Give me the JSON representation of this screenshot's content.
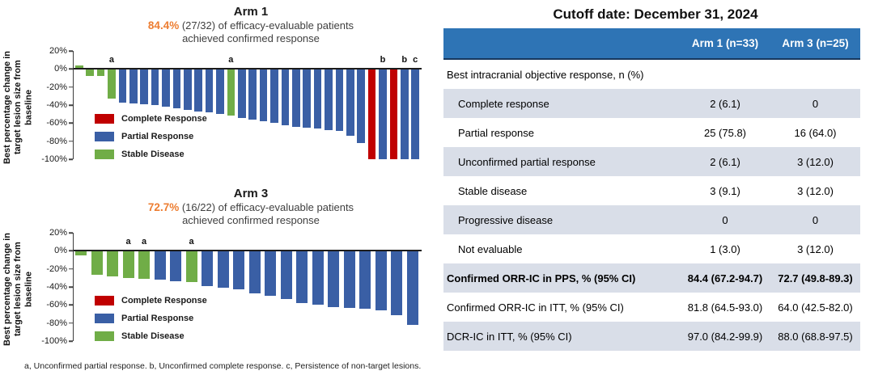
{
  "colors": {
    "cr": "#C00000",
    "pr": "#3A5FA5",
    "sd": "#70AD47",
    "accent_orange": "#ED7D31",
    "table_header_blue": "#2E74B5",
    "row_shade": "#D9DEE8",
    "zero_line": "#1C1C1C"
  },
  "legend": [
    {
      "key": "cr",
      "label": "Complete Response"
    },
    {
      "key": "pr",
      "label": "Partial Response"
    },
    {
      "key": "sd",
      "label": "Stable Disease"
    }
  ],
  "footnote": "a, Unconfirmed partial response. b, Unconfirmed complete response. c, Persistence of non-target lesions.",
  "chart_data": [
    {
      "type": "bar",
      "subtype": "waterfall",
      "title": "Arm 1",
      "highlight": "84.4%",
      "subtitle": "(27/32) of efficacy-evaluable patients",
      "subtitle2": "achieved confirmed response",
      "ylabel": "Best percentage change in target lesion size from baseline",
      "ylim": [
        -100,
        20
      ],
      "yticks": [
        "20%",
        "0%",
        "-20%",
        "-40%",
        "-60%",
        "-80%",
        "-100%"
      ],
      "grid": false,
      "legend_position": "inside-left",
      "values": [
        {
          "v": 4,
          "cat": "sd",
          "note": ""
        },
        {
          "v": -8,
          "cat": "sd",
          "note": ""
        },
        {
          "v": -8,
          "cat": "sd",
          "note": ""
        },
        {
          "v": -33,
          "cat": "sd",
          "note": "a"
        },
        {
          "v": -37,
          "cat": "pr",
          "note": ""
        },
        {
          "v": -38,
          "cat": "pr",
          "note": ""
        },
        {
          "v": -39,
          "cat": "pr",
          "note": ""
        },
        {
          "v": -40,
          "cat": "pr",
          "note": ""
        },
        {
          "v": -42,
          "cat": "pr",
          "note": ""
        },
        {
          "v": -44,
          "cat": "pr",
          "note": ""
        },
        {
          "v": -45,
          "cat": "pr",
          "note": ""
        },
        {
          "v": -47,
          "cat": "pr",
          "note": ""
        },
        {
          "v": -48,
          "cat": "pr",
          "note": ""
        },
        {
          "v": -50,
          "cat": "pr",
          "note": ""
        },
        {
          "v": -52,
          "cat": "sd",
          "note": "a"
        },
        {
          "v": -54,
          "cat": "pr",
          "note": ""
        },
        {
          "v": -56,
          "cat": "pr",
          "note": ""
        },
        {
          "v": -58,
          "cat": "pr",
          "note": ""
        },
        {
          "v": -60,
          "cat": "pr",
          "note": ""
        },
        {
          "v": -62,
          "cat": "pr",
          "note": ""
        },
        {
          "v": -64,
          "cat": "pr",
          "note": ""
        },
        {
          "v": -65,
          "cat": "pr",
          "note": ""
        },
        {
          "v": -66,
          "cat": "pr",
          "note": ""
        },
        {
          "v": -68,
          "cat": "pr",
          "note": ""
        },
        {
          "v": -69,
          "cat": "pr",
          "note": ""
        },
        {
          "v": -74,
          "cat": "pr",
          "note": ""
        },
        {
          "v": -82,
          "cat": "pr",
          "note": ""
        },
        {
          "v": -100,
          "cat": "cr",
          "note": ""
        },
        {
          "v": -100,
          "cat": "pr",
          "note": "b"
        },
        {
          "v": -100,
          "cat": "cr",
          "note": ""
        },
        {
          "v": -100,
          "cat": "pr",
          "note": "b"
        },
        {
          "v": -100,
          "cat": "pr",
          "note": "c"
        }
      ]
    },
    {
      "type": "bar",
      "subtype": "waterfall",
      "title": "Arm 3",
      "highlight": "72.7%",
      "subtitle": "(16/22) of efficacy-evaluable patients",
      "subtitle2": "achieved confirmed response",
      "ylabel": "Best percentage change in target lesion size from baseline",
      "ylim": [
        -100,
        20
      ],
      "yticks": [
        "20%",
        "0%",
        "-20%",
        "-40%",
        "-60%",
        "-80%",
        "-100%"
      ],
      "grid": false,
      "legend_position": "inside-left",
      "values": [
        {
          "v": -5,
          "cat": "sd",
          "note": ""
        },
        {
          "v": -27,
          "cat": "sd",
          "note": ""
        },
        {
          "v": -28,
          "cat": "sd",
          "note": ""
        },
        {
          "v": -30,
          "cat": "sd",
          "note": "a"
        },
        {
          "v": -31,
          "cat": "sd",
          "note": "a"
        },
        {
          "v": -32,
          "cat": "pr",
          "note": ""
        },
        {
          "v": -34,
          "cat": "pr",
          "note": ""
        },
        {
          "v": -35,
          "cat": "sd",
          "note": "a"
        },
        {
          "v": -39,
          "cat": "pr",
          "note": ""
        },
        {
          "v": -41,
          "cat": "pr",
          "note": ""
        },
        {
          "v": -43,
          "cat": "pr",
          "note": ""
        },
        {
          "v": -47,
          "cat": "pr",
          "note": ""
        },
        {
          "v": -50,
          "cat": "pr",
          "note": ""
        },
        {
          "v": -53,
          "cat": "pr",
          "note": ""
        },
        {
          "v": -58,
          "cat": "pr",
          "note": ""
        },
        {
          "v": -60,
          "cat": "pr",
          "note": ""
        },
        {
          "v": -62,
          "cat": "pr",
          "note": ""
        },
        {
          "v": -63,
          "cat": "pr",
          "note": ""
        },
        {
          "v": -64,
          "cat": "pr",
          "note": ""
        },
        {
          "v": -66,
          "cat": "pr",
          "note": ""
        },
        {
          "v": -71,
          "cat": "pr",
          "note": ""
        },
        {
          "v": -82,
          "cat": "pr",
          "note": ""
        }
      ]
    }
  ],
  "table": {
    "title": "Cutoff date: December 31, 2024",
    "columns": [
      "",
      "Arm 1 (n=33)",
      "Arm 3 (n=25)"
    ],
    "rows": [
      {
        "label": "Best intracranial objective response, n (%)",
        "arm1": "",
        "arm3": "",
        "style": "section",
        "shade": false
      },
      {
        "label": "Complete response",
        "arm1": "2 (6.1)",
        "arm3": "0",
        "style": "sub",
        "shade": true
      },
      {
        "label": "Partial response",
        "arm1": "25 (75.8)",
        "arm3": "16 (64.0)",
        "style": "sub",
        "shade": false
      },
      {
        "label": "Unconfirmed partial response",
        "arm1": "2 (6.1)",
        "arm3": "3 (12.0)",
        "style": "sub",
        "shade": true
      },
      {
        "label": "Stable disease",
        "arm1": "3 (9.1)",
        "arm3": "3 (12.0)",
        "style": "sub",
        "shade": false
      },
      {
        "label": "Progressive disease",
        "arm1": "0",
        "arm3": "0",
        "style": "sub",
        "shade": true
      },
      {
        "label": "Not evaluable",
        "arm1": "1 (3.0)",
        "arm3": "3 (12.0)",
        "style": "sub",
        "shade": false
      },
      {
        "label": "Confirmed ORR-IC in PPS, % (95% CI)",
        "arm1": "84.4 (67.2-94.7)",
        "arm3": "72.7 (49.8-89.3)",
        "style": "bold",
        "shade": true
      },
      {
        "label": "Confirmed ORR-IC in ITT, % (95% CI)",
        "arm1": "81.8 (64.5-93.0)",
        "arm3": "64.0 (42.5-82.0)",
        "style": "metric",
        "shade": false
      },
      {
        "label": "DCR-IC in ITT, % (95% CI)",
        "arm1": "97.0 (84.2-99.9)",
        "arm3": "88.0 (68.8-97.5)",
        "style": "metric",
        "shade": true
      }
    ]
  }
}
